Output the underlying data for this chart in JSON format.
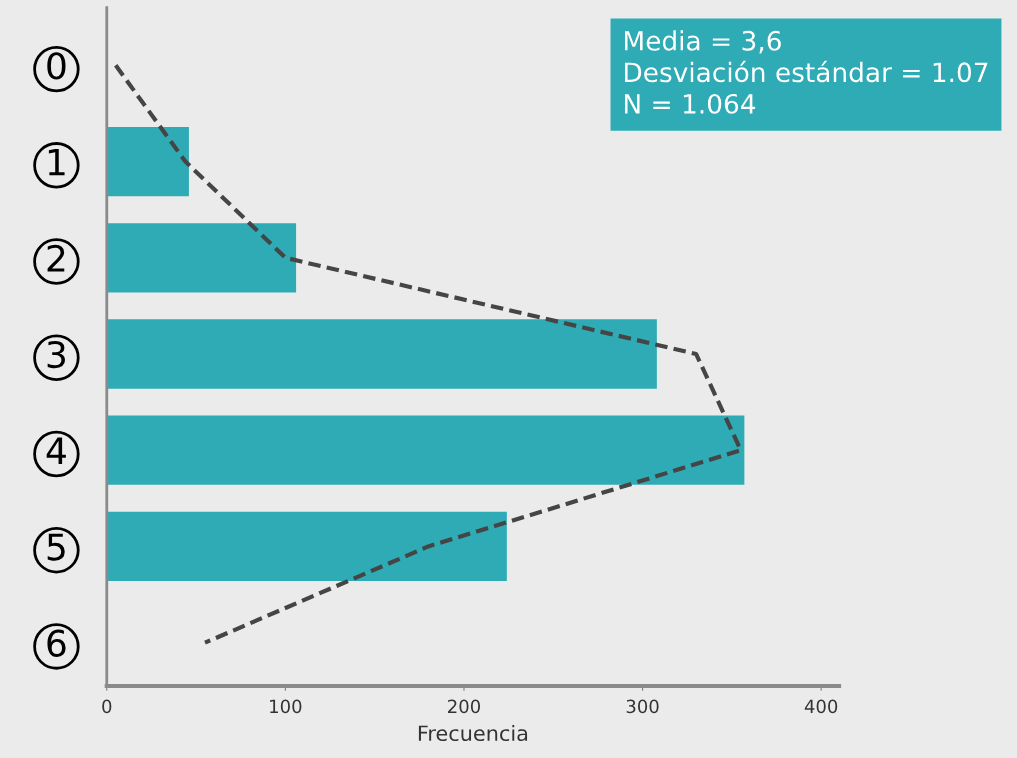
{
  "chart_data": {
    "type": "bar",
    "orientation": "horizontal",
    "xlabel": "Frecuencia",
    "categories": [
      "0",
      "1",
      "2",
      "3",
      "4",
      "5",
      "6"
    ],
    "series": [
      {
        "color": "#2eabb5",
        "values": [
          0,
          46,
          106,
          308,
          357,
          224,
          0
        ]
      },
      {
        "type": "line",
        "color": "#454545",
        "line_style": "dashed",
        "values": [
          5,
          44,
          100,
          330,
          355,
          180,
          55
        ]
      }
    ],
    "xlim": [
      0,
      410
    ],
    "xticks": [
      0,
      100,
      200,
      300,
      400
    ],
    "annotations": [
      "Media = 3,6",
      "Desviación estándar = 1.07",
      "N = 1.064"
    ],
    "grid": false,
    "legend": false
  }
}
